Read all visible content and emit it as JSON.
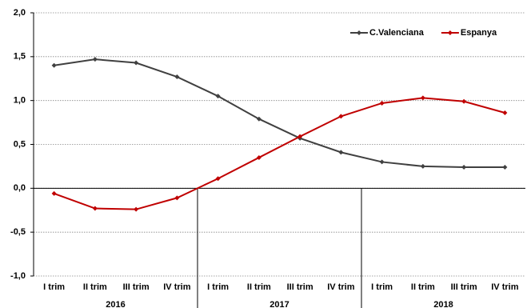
{
  "chart_data": {
    "type": "line",
    "categories": [
      "I trim",
      "II trim",
      "III trim",
      "IV trim",
      "I trim",
      "II trim",
      "III trim",
      "IV trim",
      "I trim",
      "II trim",
      "III trim",
      "IV trim"
    ],
    "years": [
      "2016",
      "2017",
      "2018"
    ],
    "series": [
      {
        "name": "C.Valenciana",
        "color": "#404040",
        "values": [
          1.4,
          1.47,
          1.43,
          1.27,
          1.05,
          0.79,
          0.57,
          0.41,
          0.3,
          0.25,
          0.24,
          0.24
        ]
      },
      {
        "name": "Espanya",
        "color": "#c00000",
        "values": [
          -0.06,
          -0.23,
          -0.24,
          -0.11,
          0.11,
          0.35,
          0.59,
          0.82,
          0.97,
          1.03,
          0.99,
          0.86
        ]
      }
    ],
    "ylim": [
      -1,
      2
    ],
    "yticks": [
      {
        "value": -1,
        "label": "-1,0"
      },
      {
        "value": -0.5,
        "label": "-0,5"
      },
      {
        "value": 0,
        "label": "0,0"
      },
      {
        "value": 0.5,
        "label": "0,5"
      },
      {
        "value": 1,
        "label": "1,0"
      },
      {
        "value": 1.5,
        "label": "1,5"
      },
      {
        "value": 2,
        "label": "2,0"
      }
    ],
    "grid": true,
    "legend": "upper right"
  }
}
